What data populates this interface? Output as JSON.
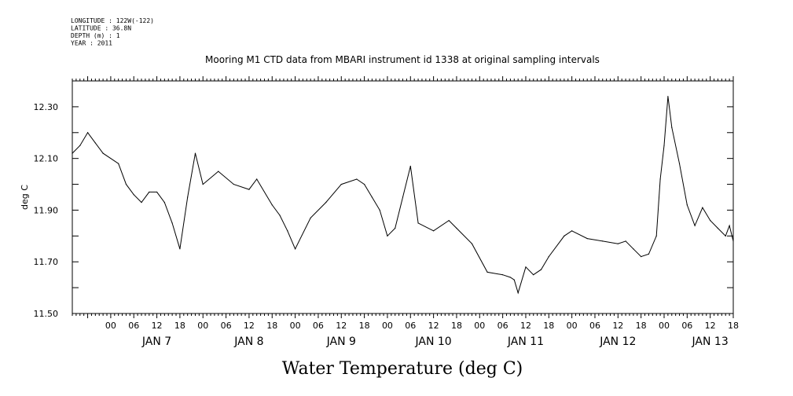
{
  "header": {
    "meta_lines": [
      "LONGITUDE : 122W(-122)",
      "LATITUDE : 36.8N",
      "DEPTH (m) : 1",
      "YEAR : 2011"
    ],
    "title": "Mooring M1 CTD data from MBARI instrument id 1338 at original sampling intervals"
  },
  "chart_data": {
    "type": "line",
    "title": "Mooring M1 CTD data from MBARI instrument id 1338 at original sampling intervals",
    "xlabel": "Water Temperature (deg C)",
    "ylabel": "deg C",
    "ylim": [
      11.5,
      12.4
    ],
    "xlim": [
      "2011-01-06 14:00",
      "2011-01-13 18:00"
    ],
    "y_ticks": [
      "11.50",
      "11.70",
      "11.90",
      "12.10",
      "12.30"
    ],
    "x_tick_labels": [
      "00",
      "06",
      "12",
      "18",
      "00",
      "06",
      "12",
      "18",
      "00",
      "06",
      "12",
      "18",
      "00",
      "06",
      "12",
      "18",
      "00",
      "06",
      "12",
      "18",
      "00",
      "06",
      "12",
      "18",
      "00",
      "06",
      "12",
      "18"
    ],
    "day_labels": [
      "JAN 7",
      "JAN 8",
      "JAN 9",
      "JAN 10",
      "JAN 11",
      "JAN 12",
      "JAN 13"
    ],
    "grid": false,
    "series": [
      {
        "color": "#000000",
        "x": [
          "2011-01-06 14:00",
          "2011-01-06 16:00",
          "2011-01-06 18:00",
          "2011-01-06 20:00",
          "2011-01-06 22:00",
          "2011-01-07 02:00",
          "2011-01-07 04:00",
          "2011-01-07 06:00",
          "2011-01-07 08:00",
          "2011-01-07 10:00",
          "2011-01-07 12:00",
          "2011-01-07 14:00",
          "2011-01-07 16:00",
          "2011-01-07 18:00",
          "2011-01-07 20:00",
          "2011-01-07 22:00",
          "2011-01-08 00:00",
          "2011-01-08 04:00",
          "2011-01-08 08:00",
          "2011-01-08 12:00",
          "2011-01-08 14:00",
          "2011-01-08 18:00",
          "2011-01-08 20:00",
          "2011-01-08 22:00",
          "2011-01-09 00:00",
          "2011-01-09 04:00",
          "2011-01-09 08:00",
          "2011-01-09 12:00",
          "2011-01-09 16:00",
          "2011-01-09 18:00",
          "2011-01-09 20:00",
          "2011-01-09 22:00",
          "2011-01-10 00:00",
          "2011-01-10 02:00",
          "2011-01-10 04:00",
          "2011-01-10 06:00",
          "2011-01-10 08:00",
          "2011-01-10 12:00",
          "2011-01-10 16:00",
          "2011-01-10 18:00",
          "2011-01-10 22:00",
          "2011-01-11 02:00",
          "2011-01-11 06:00",
          "2011-01-11 08:00",
          "2011-01-11 09:00",
          "2011-01-11 10:00",
          "2011-01-11 12:00",
          "2011-01-11 14:00",
          "2011-01-11 16:00",
          "2011-01-11 18:00",
          "2011-01-11 22:00",
          "2011-01-12 00:00",
          "2011-01-12 04:00",
          "2011-01-12 08:00",
          "2011-01-12 12:00",
          "2011-01-12 14:00",
          "2011-01-12 16:00",
          "2011-01-12 18:00",
          "2011-01-12 20:00",
          "2011-01-12 22:00",
          "2011-01-12 23:00",
          "2011-01-13 00:00",
          "2011-01-13 01:00",
          "2011-01-13 02:00",
          "2011-01-13 04:00",
          "2011-01-13 06:00",
          "2011-01-13 08:00",
          "2011-01-13 10:00",
          "2011-01-13 12:00",
          "2011-01-13 14:00",
          "2011-01-13 16:00",
          "2011-01-13 17:00",
          "2011-01-13 18:00"
        ],
        "y": [
          12.12,
          12.15,
          12.2,
          12.16,
          12.12,
          12.08,
          12.0,
          11.96,
          11.93,
          11.97,
          11.97,
          11.93,
          11.85,
          11.75,
          11.95,
          12.12,
          12.0,
          12.05,
          12.0,
          11.98,
          12.02,
          11.92,
          11.88,
          11.82,
          11.75,
          11.87,
          11.93,
          12.0,
          12.02,
          12.0,
          11.95,
          11.9,
          11.8,
          11.83,
          11.95,
          12.07,
          11.85,
          11.82,
          11.86,
          11.83,
          11.77,
          11.66,
          11.65,
          11.64,
          11.63,
          11.58,
          11.68,
          11.65,
          11.67,
          11.72,
          11.8,
          11.82,
          11.79,
          11.78,
          11.77,
          11.78,
          11.75,
          11.72,
          11.73,
          11.8,
          12.02,
          12.15,
          12.34,
          12.22,
          12.08,
          11.92,
          11.84,
          11.91,
          11.86,
          11.83,
          11.8,
          11.84,
          11.78
        ]
      }
    ]
  }
}
